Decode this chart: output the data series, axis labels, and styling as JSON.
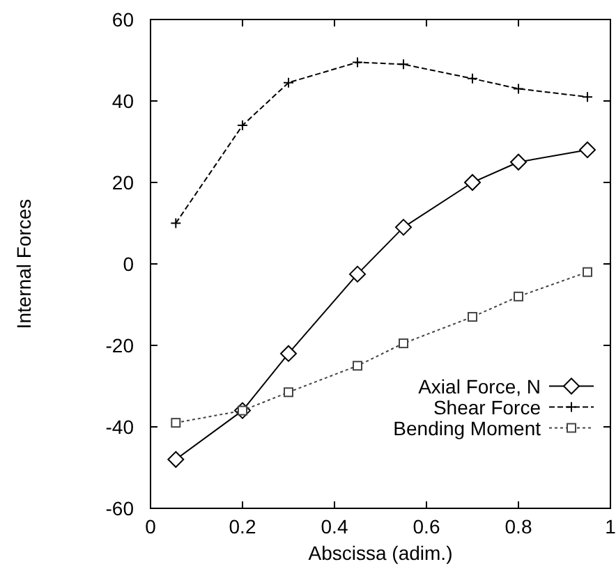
{
  "chart_data": {
    "type": "line",
    "xlabel": "Abscissa (adim.)",
    "ylabel": "Internal Forces",
    "x": [
      0.055,
      0.2,
      0.3,
      0.45,
      0.55,
      0.7,
      0.8,
      0.95
    ],
    "series": [
      {
        "name": "Axial Force, N",
        "color": "#000000",
        "marker": "diamond",
        "line_style": "solid",
        "values": [
          -48,
          -36,
          -22,
          -2.5,
          9,
          20,
          25,
          28
        ]
      },
      {
        "name": "Shear Force",
        "color": "#000000",
        "marker": "cross",
        "line_style": "dashed",
        "values": [
          10,
          34,
          44.5,
          49.5,
          49,
          45.5,
          43,
          41
        ]
      },
      {
        "name": "Bending Moment",
        "color": "#444444",
        "marker": "square",
        "line_style": "dotted",
        "values": [
          -39,
          -36,
          -31.5,
          -25,
          -19.5,
          -13,
          -8,
          -2
        ]
      }
    ],
    "xlim": [
      0,
      1
    ],
    "xticks": [
      0,
      0.2,
      0.4,
      0.6,
      0.8,
      1
    ],
    "ylim": [
      -60,
      60
    ],
    "yticks": [
      -60,
      -40,
      -20,
      0,
      20,
      40,
      60
    ],
    "grid": false,
    "legend": "bottom right"
  }
}
